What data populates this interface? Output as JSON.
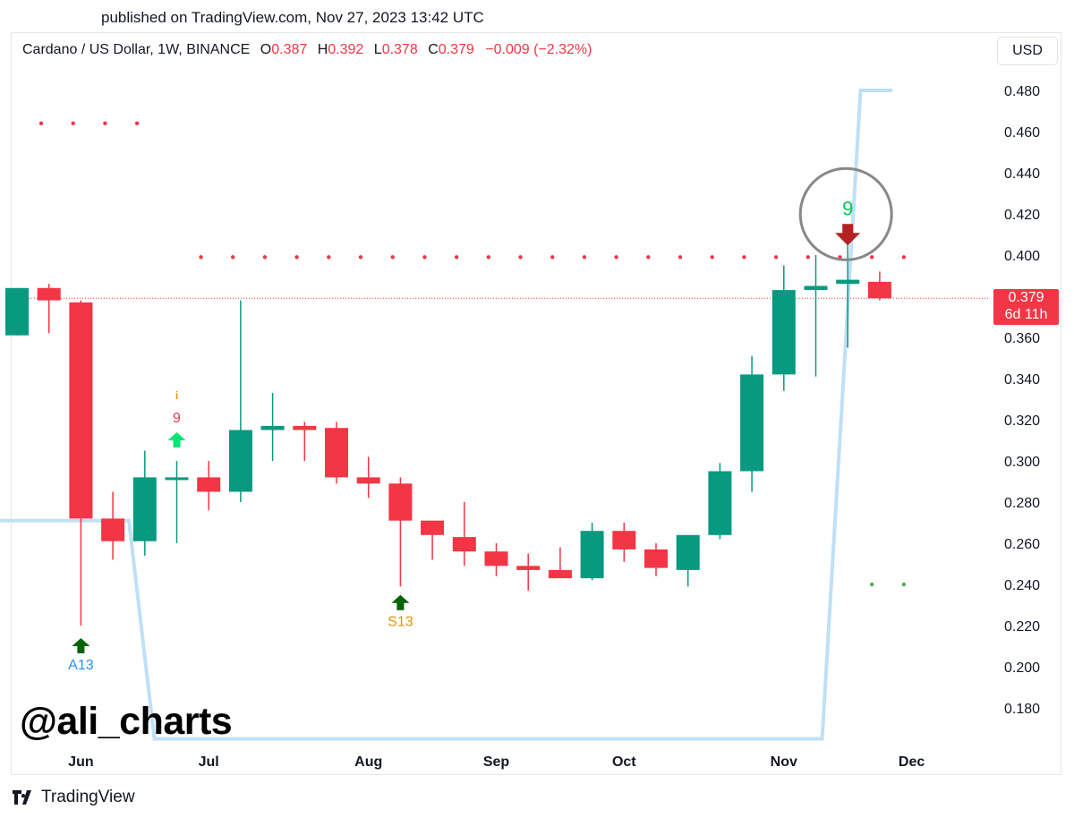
{
  "header": {
    "published": "published on TradingView.com, Nov 27, 2023 13:42 UTC"
  },
  "legend": {
    "symbol": "Cardano / US Dollar, 1W, BINANCE",
    "open_label": "O",
    "open": "0.387",
    "high_label": "H",
    "high": "0.392",
    "low_label": "L",
    "low": "0.378",
    "close_label": "C",
    "close": "0.379",
    "change": "−0.009 (−2.32%)"
  },
  "currency_button": "USD",
  "last_price": {
    "price": "0.379",
    "countdown": "6d 11h"
  },
  "watermark": "@ali_charts",
  "brand": {
    "name": "TradingView"
  },
  "colors": {
    "up": "#089981",
    "down": "#f23645",
    "up_signal": "#00e676",
    "buy_arrow": "#006400",
    "sell_arrow": "#b22222",
    "band": "#bfe0f6",
    "signal_text_orange": "#e69500"
  },
  "chart_data": {
    "type": "candlestick",
    "interval": "1W",
    "ylim": [
      0.165,
      0.49
    ],
    "y_ticks": [
      "0.480",
      "0.460",
      "0.440",
      "0.420",
      "0.400",
      "0.380",
      "0.360",
      "0.340",
      "0.320",
      "0.300",
      "0.280",
      "0.260",
      "0.240",
      "0.220",
      "0.200",
      "0.180"
    ],
    "x_ticks": [
      {
        "label": "Jun",
        "index": 2
      },
      {
        "label": "Jul",
        "index": 6
      },
      {
        "label": "Aug",
        "index": 11
      },
      {
        "label": "Sep",
        "index": 15
      },
      {
        "label": "Oct",
        "index": 19
      },
      {
        "label": "Nov",
        "index": 24
      },
      {
        "label": "Dec",
        "index": 28
      }
    ],
    "candles": [
      {
        "o": 0.361,
        "h": 0.384,
        "l": 0.361,
        "c": 0.384
      },
      {
        "o": 0.384,
        "h": 0.386,
        "l": 0.362,
        "c": 0.378
      },
      {
        "o": 0.377,
        "h": 0.378,
        "l": 0.22,
        "c": 0.272
      },
      {
        "o": 0.272,
        "h": 0.285,
        "l": 0.252,
        "c": 0.261
      },
      {
        "o": 0.261,
        "h": 0.305,
        "l": 0.254,
        "c": 0.292
      },
      {
        "o": 0.291,
        "h": 0.3,
        "l": 0.26,
        "c": 0.292
      },
      {
        "o": 0.292,
        "h": 0.3,
        "l": 0.276,
        "c": 0.285
      },
      {
        "o": 0.285,
        "h": 0.378,
        "l": 0.28,
        "c": 0.315
      },
      {
        "o": 0.315,
        "h": 0.333,
        "l": 0.3,
        "c": 0.317
      },
      {
        "o": 0.317,
        "h": 0.319,
        "l": 0.3,
        "c": 0.315
      },
      {
        "o": 0.316,
        "h": 0.319,
        "l": 0.289,
        "c": 0.292
      },
      {
        "o": 0.292,
        "h": 0.302,
        "l": 0.282,
        "c": 0.289
      },
      {
        "o": 0.289,
        "h": 0.292,
        "l": 0.239,
        "c": 0.271
      },
      {
        "o": 0.271,
        "h": 0.271,
        "l": 0.252,
        "c": 0.264
      },
      {
        "o": 0.263,
        "h": 0.28,
        "l": 0.249,
        "c": 0.256
      },
      {
        "o": 0.256,
        "h": 0.26,
        "l": 0.244,
        "c": 0.249
      },
      {
        "o": 0.249,
        "h": 0.255,
        "l": 0.237,
        "c": 0.247
      },
      {
        "o": 0.247,
        "h": 0.258,
        "l": 0.243,
        "c": 0.243
      },
      {
        "o": 0.243,
        "h": 0.27,
        "l": 0.242,
        "c": 0.266
      },
      {
        "o": 0.266,
        "h": 0.27,
        "l": 0.251,
        "c": 0.257
      },
      {
        "o": 0.257,
        "h": 0.26,
        "l": 0.244,
        "c": 0.248
      },
      {
        "o": 0.247,
        "h": 0.264,
        "l": 0.239,
        "c": 0.264
      },
      {
        "o": 0.264,
        "h": 0.299,
        "l": 0.262,
        "c": 0.295
      },
      {
        "o": 0.295,
        "h": 0.351,
        "l": 0.285,
        "c": 0.342
      },
      {
        "o": 0.342,
        "h": 0.395,
        "l": 0.334,
        "c": 0.383
      },
      {
        "o": 0.383,
        "h": 0.4,
        "l": 0.341,
        "c": 0.385
      },
      {
        "o": 0.386,
        "h": 0.415,
        "l": 0.355,
        "c": 0.388
      },
      {
        "o": 0.387,
        "h": 0.392,
        "l": 0.378,
        "c": 0.379
      }
    ],
    "last_price_line": 0.379,
    "dotted_levels": [
      {
        "value": 0.464,
        "from": 0,
        "to": 3,
        "color": "#f23645"
      },
      {
        "value": 0.399,
        "from": 5,
        "to": 27,
        "color": "#f23645"
      },
      {
        "value": 0.24,
        "from": 26,
        "to": 27,
        "color": "#4caf50"
      }
    ],
    "band_line": [
      {
        "x": -1.0,
        "y": 0.271
      },
      {
        "x": 3.5,
        "y": 0.271
      },
      {
        "x": 4.3,
        "y": 0.165
      },
      {
        "x": 25.2,
        "y": 0.165
      },
      {
        "x": 26.4,
        "y": 0.48
      },
      {
        "x": 27.4,
        "y": 0.48
      }
    ],
    "signals": [
      {
        "index": 2,
        "type": "up-arrow",
        "label": "A13",
        "label_color": "#2196f3",
        "at": 0.21
      },
      {
        "index": 12,
        "type": "up-arrow",
        "label": "S13",
        "label_color": "#e69500",
        "at": 0.231
      },
      {
        "index": 5,
        "type": "up-arrow-light",
        "label": "9",
        "label_color": "#f23645",
        "extra": "i",
        "at": 0.31
      },
      {
        "index": 26,
        "type": "down-arrow",
        "label": "9",
        "label_color": "#00c853",
        "at": 0.409,
        "circled": true
      }
    ]
  }
}
